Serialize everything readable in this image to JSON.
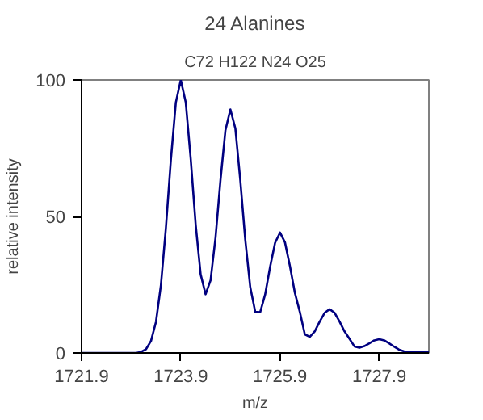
{
  "chart_data": {
    "type": "line",
    "title": "24 Alanines",
    "subtitle": "C72 H122 N24 O25",
    "xlabel": "m/z",
    "ylabel": "relative intensity",
    "x": [
      1721.9,
      1722.4,
      1722.9,
      1723.0,
      1723.1,
      1723.2,
      1723.3,
      1723.4,
      1723.5,
      1723.6,
      1723.7,
      1723.8,
      1723.9,
      1724.0,
      1724.1,
      1724.2,
      1724.3,
      1724.4,
      1724.5,
      1724.6,
      1724.7,
      1724.8,
      1724.9,
      1725.0,
      1725.1,
      1725.2,
      1725.3,
      1725.4,
      1725.5,
      1725.6,
      1725.7,
      1725.8,
      1725.9,
      1726.0,
      1726.1,
      1726.2,
      1726.3,
      1726.4,
      1726.5,
      1726.6,
      1726.7,
      1726.8,
      1726.9,
      1727.0,
      1727.1,
      1727.2,
      1727.3,
      1727.4,
      1727.5,
      1727.6,
      1727.7,
      1727.8,
      1727.9,
      1728.0,
      1728.1,
      1728.2,
      1728.3,
      1728.4,
      1728.5,
      1728.7,
      1728.9
    ],
    "series": [
      {
        "color": "#000080",
        "values": [
          0,
          0,
          0,
          0,
          0.4,
          1.4,
          4.4,
          11.4,
          24.9,
          45.8,
          70.7,
          91.7,
          100,
          91.8,
          71.1,
          47,
          28.8,
          21.5,
          26.6,
          42.2,
          63.3,
          81.6,
          89.2,
          82.2,
          63.1,
          41.4,
          24.1,
          15.1,
          14.9,
          21.4,
          31.5,
          40.3,
          44.1,
          40.5,
          31.8,
          22,
          15,
          6.8,
          5.9,
          7.9,
          11.5,
          14.7,
          16,
          14.7,
          11.5,
          7.9,
          5.2,
          2.4,
          1.9,
          2.5,
          3.5,
          4.6,
          5,
          4.6,
          3.5,
          2.3,
          1.2,
          0.6,
          0.3,
          0.3,
          0.3
        ]
      }
    ],
    "xlim": [
      1721.9,
      1728.9
    ],
    "ylim": [
      0,
      100
    ],
    "xticks": [
      1721.9,
      1723.9,
      1725.9,
      1727.9
    ],
    "yticks": [
      0,
      50,
      100
    ],
    "grid": false,
    "marker": "none",
    "line_style": "solid"
  }
}
